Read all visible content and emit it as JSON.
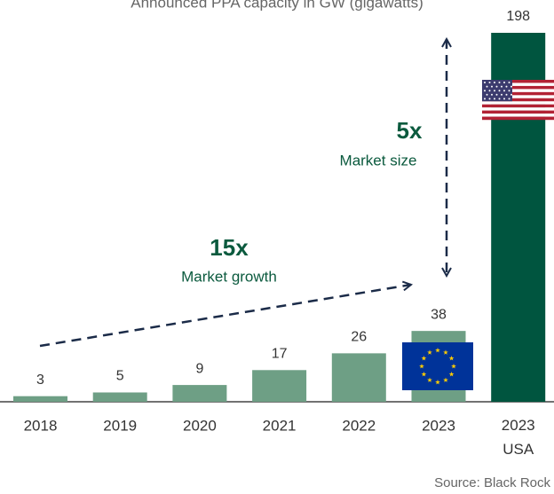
{
  "chart_data": {
    "type": "bar",
    "title": "Announced PPA capacity in GW (gigawatts)",
    "categories": [
      "2018",
      "2019",
      "2020",
      "2021",
      "2022",
      "2023",
      "2023 USA"
    ],
    "values": [
      3,
      5,
      9,
      17,
      26,
      38,
      198
    ],
    "colors": [
      "#6e9f85",
      "#6e9f85",
      "#6e9f85",
      "#6e9f85",
      "#6e9f85",
      "#6e9f85",
      "#00553f"
    ],
    "annotations": [
      {
        "label": "15x",
        "note": "Market growth"
      },
      {
        "label": "5x",
        "note": "Market size"
      }
    ],
    "source": "Source: Black Rock"
  }
}
